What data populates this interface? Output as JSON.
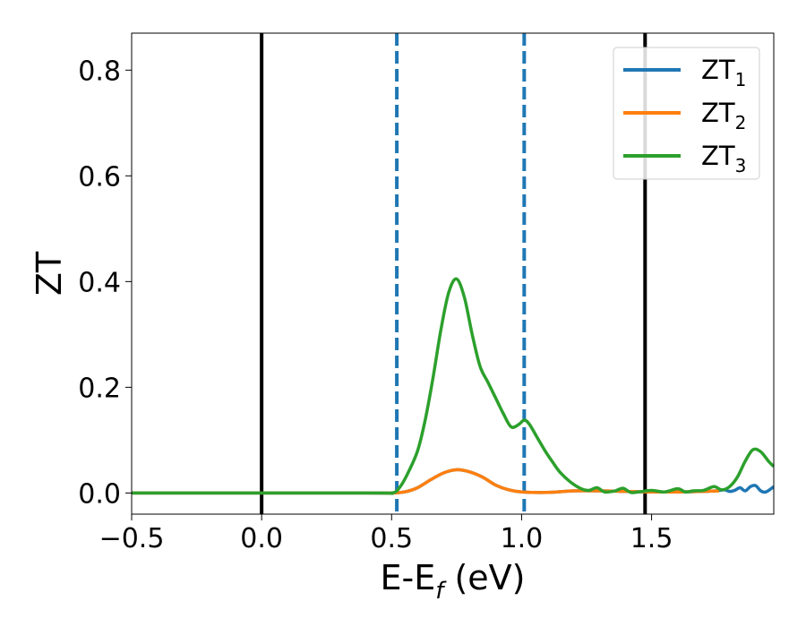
{
  "chart_data": {
    "type": "line",
    "title": "",
    "xlabel": "E-E",
    "xlabel_sub": "f",
    "xlabel_unit": " (eV)",
    "ylabel": "ZT",
    "xlim": [
      -0.5,
      1.97
    ],
    "ylim": [
      -0.04,
      0.87
    ],
    "xticks": [
      -0.5,
      0.0,
      0.5,
      1.0,
      1.5
    ],
    "xtick_labels": [
      "−0.5",
      "0.0",
      "0.5",
      "1.0",
      "1.5"
    ],
    "yticks": [
      0.0,
      0.2,
      0.4,
      0.6,
      0.8
    ],
    "ytick_labels": [
      "0.0",
      "0.2",
      "0.4",
      "0.6",
      "0.8"
    ],
    "grid": false,
    "legend_position": "top-right",
    "vlines": [
      {
        "x": 0.0,
        "style": "solid",
        "color": "#000000"
      },
      {
        "x": 1.475,
        "style": "solid",
        "color": "#000000"
      },
      {
        "x": 0.52,
        "style": "dashed",
        "color": "#1f77b4"
      },
      {
        "x": 1.01,
        "style": "dashed",
        "color": "#1f77b4"
      }
    ],
    "series": [
      {
        "name": "ZT",
        "name_sub": "1",
        "color": "#1f77b4",
        "x": [
          -0.5,
          0.4,
          0.5,
          0.55,
          0.6,
          0.65,
          0.7,
          0.75,
          0.8,
          0.85,
          0.9,
          0.95,
          1.0,
          1.1,
          1.2,
          1.3,
          1.4,
          1.5,
          1.6,
          1.7,
          1.75,
          1.78,
          1.8,
          1.82,
          1.84,
          1.86,
          1.88,
          1.9,
          1.92,
          1.94,
          1.97
        ],
        "y": [
          0.0,
          0.0,
          0.0,
          0.002,
          0.01,
          0.025,
          0.038,
          0.044,
          0.04,
          0.03,
          0.015,
          0.006,
          0.002,
          0.001,
          0.004,
          0.004,
          0.003,
          0.002,
          0.002,
          0.003,
          0.004,
          0.006,
          0.003,
          0.005,
          0.01,
          0.004,
          0.012,
          0.014,
          0.004,
          0.002,
          0.012
        ]
      },
      {
        "name": "ZT",
        "name_sub": "2",
        "color": "#ff7f0e",
        "x": [
          -0.5,
          0.4,
          0.5,
          0.55,
          0.6,
          0.65,
          0.7,
          0.75,
          0.8,
          0.85,
          0.9,
          0.95,
          1.0,
          1.1,
          1.2,
          1.3,
          1.4,
          1.5,
          1.6,
          1.7,
          1.76
        ],
        "y": [
          0.0,
          0.0,
          0.0,
          0.002,
          0.01,
          0.025,
          0.038,
          0.044,
          0.04,
          0.03,
          0.015,
          0.006,
          0.002,
          0.001,
          0.004,
          0.004,
          0.003,
          0.002,
          0.002,
          0.003,
          0.004
        ]
      },
      {
        "name": "ZT",
        "name_sub": "3",
        "color": "#2ca02c",
        "x": [
          -0.5,
          0.4,
          0.5,
          0.53,
          0.56,
          0.6,
          0.63,
          0.66,
          0.69,
          0.72,
          0.75,
          0.78,
          0.81,
          0.84,
          0.87,
          0.9,
          0.93,
          0.96,
          0.99,
          1.01,
          1.03,
          1.06,
          1.09,
          1.12,
          1.15,
          1.19,
          1.23,
          1.26,
          1.29,
          1.32,
          1.36,
          1.39,
          1.42,
          1.45,
          1.5,
          1.55,
          1.6,
          1.63,
          1.66,
          1.7,
          1.74,
          1.77,
          1.8,
          1.83,
          1.86,
          1.89,
          1.92,
          1.95,
          1.97
        ],
        "y": [
          0.0,
          0.0,
          0.0,
          0.01,
          0.035,
          0.08,
          0.14,
          0.22,
          0.31,
          0.38,
          0.405,
          0.37,
          0.3,
          0.24,
          0.21,
          0.18,
          0.15,
          0.125,
          0.13,
          0.138,
          0.13,
          0.105,
          0.08,
          0.058,
          0.038,
          0.02,
          0.008,
          0.005,
          0.01,
          0.002,
          0.004,
          0.009,
          0.001,
          0.002,
          0.005,
          0.002,
          0.008,
          0.002,
          0.004,
          0.005,
          0.012,
          0.006,
          0.012,
          0.03,
          0.06,
          0.082,
          0.078,
          0.06,
          0.05
        ]
      }
    ]
  }
}
